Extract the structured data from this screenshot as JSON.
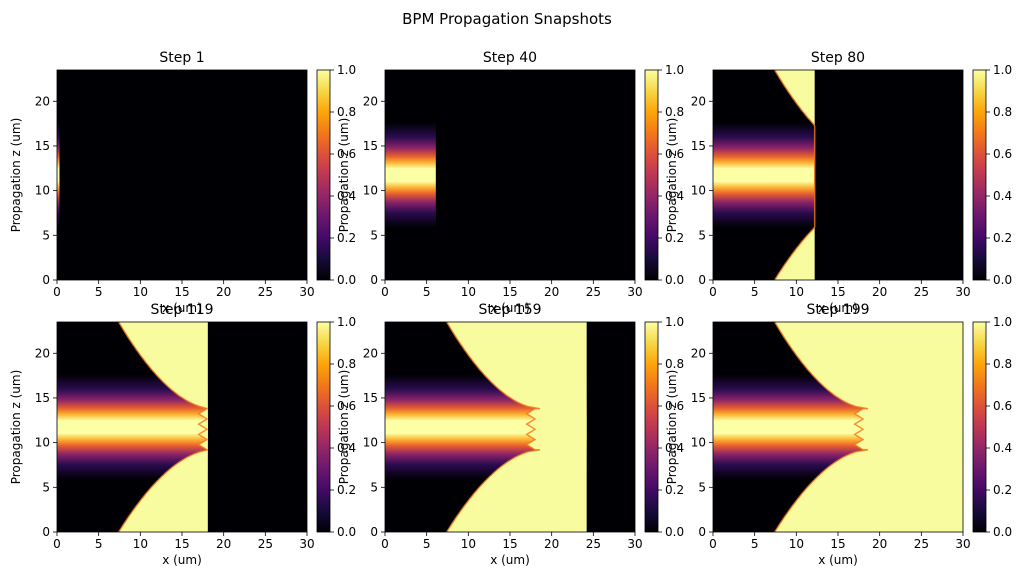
{
  "figure": {
    "title": "BPM Propagation Snapshots"
  },
  "chart_data": [
    {
      "type": "heatmap",
      "title": "Step 1",
      "xlabel": "x (um)",
      "ylabel": "Propagation z (um)",
      "xlim": [
        0,
        30
      ],
      "ylim": [
        0,
        23.5
      ],
      "xticks": [
        0,
        5,
        10,
        15,
        20,
        25,
        30
      ],
      "yticks": [
        0,
        5,
        10,
        15,
        20
      ],
      "field_front_x": 0.3,
      "colorbar": {
        "range": [
          0.0,
          1.0
        ],
        "ticks": [
          "0.0",
          "0.2",
          "0.4",
          "0.6",
          "0.8",
          "1.0"
        ]
      },
      "colormap": "inferno"
    },
    {
      "type": "heatmap",
      "title": "Step 40",
      "xlabel": "x (um)",
      "ylabel": "Propagation z (um)",
      "xlim": [
        0,
        30
      ],
      "ylim": [
        0,
        23.5
      ],
      "xticks": [
        0,
        5,
        10,
        15,
        20,
        25,
        30
      ],
      "yticks": [
        0,
        5,
        10,
        15,
        20
      ],
      "field_front_x": 6.1,
      "colorbar": {
        "range": [
          0.0,
          1.0
        ],
        "ticks": [
          "0.0",
          "0.2",
          "0.4",
          "0.6",
          "0.8",
          "1.0"
        ]
      },
      "colormap": "inferno"
    },
    {
      "type": "heatmap",
      "title": "Step 80",
      "xlabel": "x (um)",
      "ylabel": "Propagation z (um)",
      "xlim": [
        0,
        30
      ],
      "ylim": [
        0,
        23.5
      ],
      "xticks": [
        0,
        5,
        10,
        15,
        20,
        25,
        30
      ],
      "yticks": [
        0,
        5,
        10,
        15,
        20
      ],
      "field_front_x": 12.2,
      "colorbar": {
        "range": [
          0.0,
          1.0
        ],
        "ticks": [
          "0.0",
          "0.2",
          "0.4",
          "0.6",
          "0.8",
          "1.0"
        ]
      },
      "colormap": "inferno"
    },
    {
      "type": "heatmap",
      "title": "Step 119",
      "xlabel": "x (um)",
      "ylabel": "Propagation z (um)",
      "xlim": [
        0,
        30
      ],
      "ylim": [
        0,
        23.5
      ],
      "xticks": [
        0,
        5,
        10,
        15,
        20,
        25,
        30
      ],
      "yticks": [
        0,
        5,
        10,
        15,
        20
      ],
      "field_front_x": 18.1,
      "colorbar": {
        "range": [
          0.0,
          1.0
        ],
        "ticks": [
          "0.0",
          "0.2",
          "0.4",
          "0.6",
          "0.8",
          "1.0"
        ]
      },
      "colormap": "inferno"
    },
    {
      "type": "heatmap",
      "title": "Step 159",
      "xlabel": "x (um)",
      "ylabel": "Propagation z (um)",
      "xlim": [
        0,
        30
      ],
      "ylim": [
        0,
        23.5
      ],
      "xticks": [
        0,
        5,
        10,
        15,
        20,
        25,
        30
      ],
      "yticks": [
        0,
        5,
        10,
        15,
        20
      ],
      "field_front_x": 24.2,
      "colorbar": {
        "range": [
          0.0,
          1.0
        ],
        "ticks": [
          "0.0",
          "0.2",
          "0.4",
          "0.6",
          "0.8",
          "1.0"
        ]
      },
      "colormap": "inferno"
    },
    {
      "type": "heatmap",
      "title": "Step 199",
      "xlabel": "x (um)",
      "ylabel": "Propagation z (um)",
      "xlim": [
        0,
        30
      ],
      "ylim": [
        0,
        23.5
      ],
      "xticks": [
        0,
        5,
        10,
        15,
        20,
        25,
        30
      ],
      "yticks": [
        0,
        5,
        10,
        15,
        20
      ],
      "field_front_x": 30,
      "colorbar": {
        "range": [
          0.0,
          1.0
        ],
        "ticks": [
          "0.0",
          "0.2",
          "0.4",
          "0.6",
          "0.8",
          "1.0"
        ]
      },
      "colormap": "inferno"
    }
  ]
}
